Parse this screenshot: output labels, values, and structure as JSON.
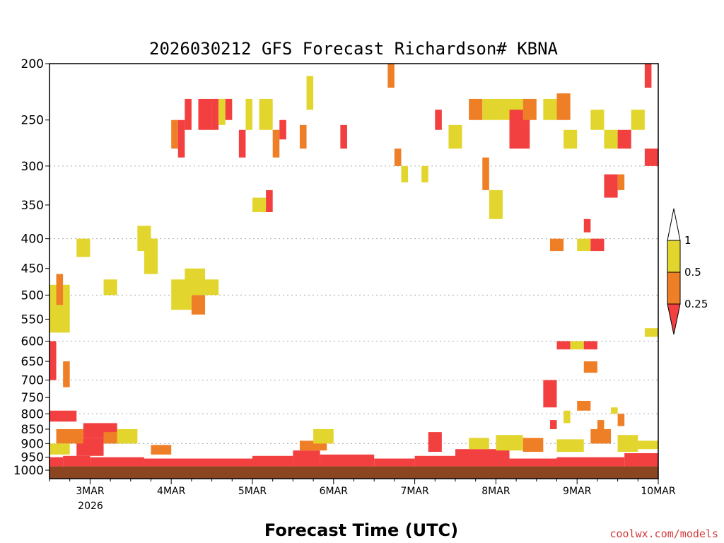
{
  "chart_data": {
    "type": "heatmap",
    "title": "2026030212 GFS Forecast Richardson# KBNA",
    "xlabel": "Forecast Time (UTC)",
    "credit": "coolwx.com/models",
    "colors": {
      "low": "#f23f3f",
      "mid": "#ef7f27",
      "high": "#e2d62e",
      "ground": "#8b4520",
      "grid": "#aaaaaa"
    },
    "y_axis": {
      "scale": "pressure",
      "range": [
        1000,
        200
      ],
      "ticks": [
        200,
        250,
        300,
        350,
        400,
        450,
        500,
        550,
        600,
        650,
        700,
        750,
        800,
        850,
        900,
        950,
        1000
      ],
      "gridlines": [
        300,
        400,
        500,
        600,
        700,
        800,
        900
      ]
    },
    "x_axis": {
      "range_hours": [
        0,
        180
      ],
      "ticks": [
        {
          "label": "3MAR",
          "hour": 12
        },
        {
          "label": "4MAR",
          "hour": 36
        },
        {
          "label": "5MAR",
          "hour": 60
        },
        {
          "label": "6MAR",
          "hour": 84
        },
        {
          "label": "7MAR",
          "hour": 108
        },
        {
          "label": "8MAR",
          "hour": 132
        },
        {
          "label": "9MAR",
          "hour": 156
        },
        {
          "label": "10MAR",
          "hour": 180
        }
      ],
      "year_label": "2026"
    },
    "legend": {
      "placement": "right",
      "labels": [
        "1",
        "0.5",
        "0.25"
      ],
      "levels": [
        {
          "range": "above 1",
          "color": "#ffffff"
        },
        {
          "range": "0.5–1",
          "color": "#e2d62e"
        },
        {
          "range": "0.25–0.5",
          "color": "#ef7f27"
        },
        {
          "range": "below 0.25",
          "color": "#f23f3f"
        }
      ]
    },
    "regions": [
      {
        "x": [
          0,
          180
        ],
        "p": [
          1000,
          985
        ],
        "c": "ground"
      },
      {
        "x": [
          0,
          4
        ],
        "p": [
          985,
          950
        ],
        "c": "low"
      },
      {
        "x": [
          4,
          12
        ],
        "p": [
          985,
          945
        ],
        "c": "low"
      },
      {
        "x": [
          12,
          28
        ],
        "p": [
          985,
          950
        ],
        "c": "low"
      },
      {
        "x": [
          28,
          60
        ],
        "p": [
          985,
          955
        ],
        "c": "low"
      },
      {
        "x": [
          60,
          72
        ],
        "p": [
          985,
          945
        ],
        "c": "low"
      },
      {
        "x": [
          72,
          80
        ],
        "p": [
          985,
          925
        ],
        "c": "low"
      },
      {
        "x": [
          80,
          96
        ],
        "p": [
          985,
          940
        ],
        "c": "low"
      },
      {
        "x": [
          96,
          108
        ],
        "p": [
          985,
          955
        ],
        "c": "low"
      },
      {
        "x": [
          108,
          120
        ],
        "p": [
          985,
          945
        ],
        "c": "low"
      },
      {
        "x": [
          120,
          136
        ],
        "p": [
          985,
          920
        ],
        "c": "low"
      },
      {
        "x": [
          136,
          150
        ],
        "p": [
          985,
          955
        ],
        "c": "low"
      },
      {
        "x": [
          150,
          170
        ],
        "p": [
          985,
          950
        ],
        "c": "low"
      },
      {
        "x": [
          170,
          180
        ],
        "p": [
          985,
          935
        ],
        "c": "low"
      },
      {
        "x": [
          0,
          8
        ],
        "p": [
          825,
          790
        ],
        "c": "low"
      },
      {
        "x": [
          8,
          16
        ],
        "p": [
          945,
          880
        ],
        "c": "low"
      },
      {
        "x": [
          10,
          20
        ],
        "p": [
          880,
          830
        ],
        "c": "low"
      },
      {
        "x": [
          16,
          22
        ],
        "p": [
          900,
          860
        ],
        "c": "mid"
      },
      {
        "x": [
          2,
          10
        ],
        "p": [
          900,
          850
        ],
        "c": "mid"
      },
      {
        "x": [
          0,
          6
        ],
        "p": [
          940,
          900
        ],
        "c": "high"
      },
      {
        "x": [
          20,
          26
        ],
        "p": [
          900,
          850
        ],
        "c": "high"
      },
      {
        "x": [
          30,
          36
        ],
        "p": [
          940,
          905
        ],
        "c": "mid"
      },
      {
        "x": [
          74,
          82
        ],
        "p": [
          925,
          890
        ],
        "c": "mid"
      },
      {
        "x": [
          78,
          84
        ],
        "p": [
          900,
          850
        ],
        "c": "high"
      },
      {
        "x": [
          112,
          116
        ],
        "p": [
          930,
          860
        ],
        "c": "low"
      },
      {
        "x": [
          124,
          130
        ],
        "p": [
          920,
          880
        ],
        "c": "high"
      },
      {
        "x": [
          132,
          140
        ],
        "p": [
          925,
          870
        ],
        "c": "high"
      },
      {
        "x": [
          140,
          146
        ],
        "p": [
          930,
          880
        ],
        "c": "mid"
      },
      {
        "x": [
          150,
          158
        ],
        "p": [
          930,
          885
        ],
        "c": "high"
      },
      {
        "x": [
          160,
          166
        ],
        "p": [
          900,
          850
        ],
        "c": "mid"
      },
      {
        "x": [
          168,
          174
        ],
        "p": [
          930,
          870
        ],
        "c": "high"
      },
      {
        "x": [
          174,
          180
        ],
        "p": [
          920,
          890
        ],
        "c": "high"
      },
      {
        "x": [
          0,
          2
        ],
        "p": [
          700,
          600
        ],
        "c": "low"
      },
      {
        "x": [
          4,
          6
        ],
        "p": [
          720,
          650
        ],
        "c": "mid"
      },
      {
        "x": [
          0,
          6
        ],
        "p": [
          580,
          480
        ],
        "c": "high"
      },
      {
        "x": [
          2,
          4
        ],
        "p": [
          520,
          460
        ],
        "c": "mid"
      },
      {
        "x": [
          8,
          12
        ],
        "p": [
          430,
          400
        ],
        "c": "high"
      },
      {
        "x": [
          16,
          20
        ],
        "p": [
          500,
          470
        ],
        "c": "high"
      },
      {
        "x": [
          26,
          30
        ],
        "p": [
          420,
          380
        ],
        "c": "high"
      },
      {
        "x": [
          28,
          32
        ],
        "p": [
          460,
          400
        ],
        "c": "high"
      },
      {
        "x": [
          36,
          42
        ],
        "p": [
          530,
          470
        ],
        "c": "high"
      },
      {
        "x": [
          40,
          46
        ],
        "p": [
          500,
          450
        ],
        "c": "high"
      },
      {
        "x": [
          42,
          46
        ],
        "p": [
          540,
          500
        ],
        "c": "mid"
      },
      {
        "x": [
          46,
          50
        ],
        "p": [
          500,
          470
        ],
        "c": "high"
      },
      {
        "x": [
          36,
          38
        ],
        "p": [
          280,
          250
        ],
        "c": "mid"
      },
      {
        "x": [
          38,
          40
        ],
        "p": [
          290,
          250
        ],
        "c": "low"
      },
      {
        "x": [
          40,
          42
        ],
        "p": [
          260,
          230
        ],
        "c": "low"
      },
      {
        "x": [
          44,
          48
        ],
        "p": [
          260,
          230
        ],
        "c": "low"
      },
      {
        "x": [
          48,
          50
        ],
        "p": [
          260,
          230
        ],
        "c": "low"
      },
      {
        "x": [
          50,
          52
        ],
        "p": [
          255,
          230
        ],
        "c": "high"
      },
      {
        "x": [
          52,
          54
        ],
        "p": [
          250,
          230
        ],
        "c": "low"
      },
      {
        "x": [
          56,
          58
        ],
        "p": [
          290,
          260
        ],
        "c": "low"
      },
      {
        "x": [
          58,
          60
        ],
        "p": [
          260,
          230
        ],
        "c": "high"
      },
      {
        "x": [
          62,
          66
        ],
        "p": [
          260,
          230
        ],
        "c": "high"
      },
      {
        "x": [
          60,
          64
        ],
        "p": [
          360,
          340
        ],
        "c": "high"
      },
      {
        "x": [
          64,
          66
        ],
        "p": [
          360,
          330
        ],
        "c": "low"
      },
      {
        "x": [
          66,
          68
        ],
        "p": [
          290,
          260
        ],
        "c": "mid"
      },
      {
        "x": [
          68,
          70
        ],
        "p": [
          270,
          250
        ],
        "c": "low"
      },
      {
        "x": [
          74,
          76
        ],
        "p": [
          280,
          255
        ],
        "c": "mid"
      },
      {
        "x": [
          76,
          78
        ],
        "p": [
          240,
          210
        ],
        "c": "high"
      },
      {
        "x": [
          86,
          88
        ],
        "p": [
          280,
          255
        ],
        "c": "low"
      },
      {
        "x": [
          100,
          102
        ],
        "p": [
          220,
          200
        ],
        "c": "mid"
      },
      {
        "x": [
          102,
          104
        ],
        "p": [
          300,
          280
        ],
        "c": "mid"
      },
      {
        "x": [
          104,
          106
        ],
        "p": [
          320,
          300
        ],
        "c": "high"
      },
      {
        "x": [
          110,
          112
        ],
        "p": [
          320,
          300
        ],
        "c": "high"
      },
      {
        "x": [
          114,
          116
        ],
        "p": [
          260,
          240
        ],
        "c": "low"
      },
      {
        "x": [
          118,
          122
        ],
        "p": [
          280,
          255
        ],
        "c": "high"
      },
      {
        "x": [
          124,
          128
        ],
        "p": [
          250,
          230
        ],
        "c": "mid"
      },
      {
        "x": [
          128,
          134
        ],
        "p": [
          250,
          230
        ],
        "c": "high"
      },
      {
        "x": [
          134,
          140
        ],
        "p": [
          250,
          230
        ],
        "c": "high"
      },
      {
        "x": [
          136,
          142
        ],
        "p": [
          280,
          240
        ],
        "c": "low"
      },
      {
        "x": [
          140,
          144
        ],
        "p": [
          250,
          230
        ],
        "c": "mid"
      },
      {
        "x": [
          146,
          150
        ],
        "p": [
          250,
          230
        ],
        "c": "high"
      },
      {
        "x": [
          150,
          154
        ],
        "p": [
          250,
          225
        ],
        "c": "mid"
      },
      {
        "x": [
          152,
          156
        ],
        "p": [
          280,
          260
        ],
        "c": "high"
      },
      {
        "x": [
          160,
          164
        ],
        "p": [
          260,
          240
        ],
        "c": "high"
      },
      {
        "x": [
          164,
          168
        ],
        "p": [
          280,
          260
        ],
        "c": "high"
      },
      {
        "x": [
          168,
          172
        ],
        "p": [
          280,
          260
        ],
        "c": "low"
      },
      {
        "x": [
          172,
          176
        ],
        "p": [
          260,
          240
        ],
        "c": "high"
      },
      {
        "x": [
          176,
          178
        ],
        "p": [
          220,
          200
        ],
        "c": "low"
      },
      {
        "x": [
          176,
          180
        ],
        "p": [
          300,
          280
        ],
        "c": "low"
      },
      {
        "x": [
          128,
          130
        ],
        "p": [
          330,
          290
        ],
        "c": "mid"
      },
      {
        "x": [
          130,
          134
        ],
        "p": [
          370,
          330
        ],
        "c": "high"
      },
      {
        "x": [
          164,
          168
        ],
        "p": [
          340,
          310
        ],
        "c": "low"
      },
      {
        "x": [
          168,
          170
        ],
        "p": [
          330,
          310
        ],
        "c": "mid"
      },
      {
        "x": [
          158,
          160
        ],
        "p": [
          390,
          370
        ],
        "c": "low"
      },
      {
        "x": [
          156,
          160
        ],
        "p": [
          420,
          400
        ],
        "c": "high"
      },
      {
        "x": [
          160,
          164
        ],
        "p": [
          420,
          400
        ],
        "c": "low"
      },
      {
        "x": [
          148,
          152
        ],
        "p": [
          420,
          400
        ],
        "c": "mid"
      },
      {
        "x": [
          150,
          154
        ],
        "p": [
          620,
          600
        ],
        "c": "low"
      },
      {
        "x": [
          154,
          158
        ],
        "p": [
          620,
          600
        ],
        "c": "high"
      },
      {
        "x": [
          158,
          162
        ],
        "p": [
          620,
          600
        ],
        "c": "low"
      },
      {
        "x": [
          158,
          162
        ],
        "p": [
          680,
          650
        ],
        "c": "mid"
      },
      {
        "x": [
          146,
          150
        ],
        "p": [
          780,
          700
        ],
        "c": "low"
      },
      {
        "x": [
          148,
          150
        ],
        "p": [
          850,
          820
        ],
        "c": "low"
      },
      {
        "x": [
          152,
          154
        ],
        "p": [
          830,
          790
        ],
        "c": "high"
      },
      {
        "x": [
          156,
          160
        ],
        "p": [
          790,
          760
        ],
        "c": "mid"
      },
      {
        "x": [
          162,
          164
        ],
        "p": [
          860,
          820
        ],
        "c": "mid"
      },
      {
        "x": [
          166,
          168
        ],
        "p": [
          800,
          780
        ],
        "c": "high"
      },
      {
        "x": [
          168,
          170
        ],
        "p": [
          840,
          800
        ],
        "c": "mid"
      },
      {
        "x": [
          176,
          180
        ],
        "p": [
          590,
          570
        ],
        "c": "high"
      }
    ]
  }
}
